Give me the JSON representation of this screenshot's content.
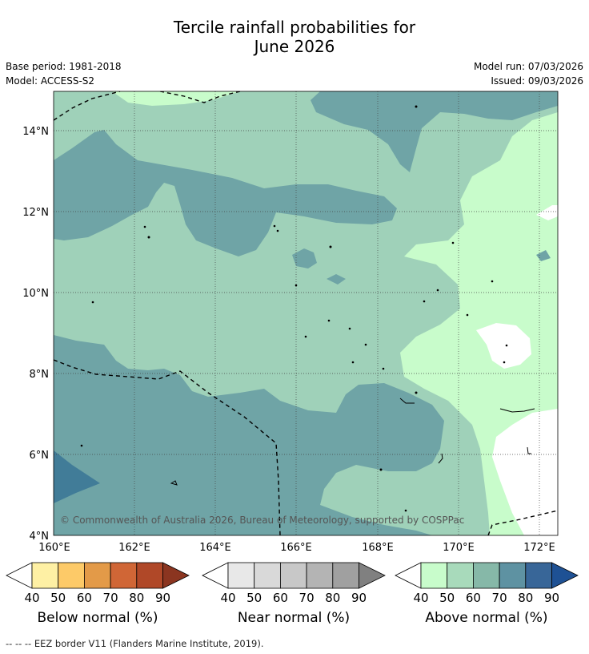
{
  "title_line1": "Tercile rainfall probabilities for",
  "title_line2": "June 2026",
  "base_period": "Base period: 1981-2018",
  "model": "Model: ACCESS-S2",
  "model_run": "Model run: 07/03/2026",
  "issued": "Issued: 09/03/2026",
  "copyright": "© Commonwealth of Australia 2026, Bureau of Meteorology, supported by COSPPac",
  "lat_ticks": [
    "14°N",
    "12°N",
    "10°N",
    "8°N",
    "6°N",
    "4°N"
  ],
  "lon_ticks": [
    "160°E",
    "162°E",
    "164°E",
    "166°E",
    "168°E",
    "170°E",
    "172°E"
  ],
  "colorbars": [
    {
      "caption": "Below normal (%)",
      "ticks": [
        "40",
        "50",
        "60",
        "70",
        "80",
        "90"
      ],
      "colors": [
        "#fef0a4",
        "#fdca68",
        "#e39a48",
        "#d06636",
        "#b04828",
        "#8b3520"
      ]
    },
    {
      "caption": "Near normal (%)",
      "ticks": [
        "40",
        "50",
        "60",
        "70",
        "80",
        "90"
      ],
      "colors": [
        "#e8e8e8",
        "#d9d9d9",
        "#c8c8c8",
        "#b4b4b4",
        "#a0a0a0",
        "#808080"
      ]
    },
    {
      "caption": "Above normal (%)",
      "ticks": [
        "40",
        "50",
        "60",
        "70",
        "80",
        "90"
      ],
      "colors": [
        "#c8fccb",
        "#a8dabb",
        "#86b8a8",
        "#5e92a2",
        "#386698",
        "#1e5194"
      ]
    }
  ],
  "footer": "-- -- -- EEZ border V11 (Flanders Marine Institute, 2019).",
  "colors": {
    "above_40_50": "#c8fccb",
    "above_50_60": "#9fd1b9",
    "above_60_70": "#6fa4a6",
    "above_70_80": "#417c98"
  }
}
